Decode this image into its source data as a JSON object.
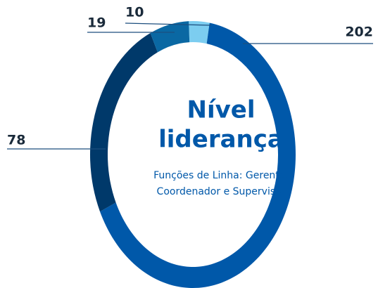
{
  "chart_data": {
    "type": "donut",
    "title": "Nível liderança",
    "subtitle": "Funções de Linha: Gerente, Coordenador e Supervisor",
    "values": [
      10,
      202,
      78,
      19
    ],
    "colors": [
      "#7ccdf0",
      "#0058a9",
      "#00396a",
      "#0a68a3"
    ]
  }
}
